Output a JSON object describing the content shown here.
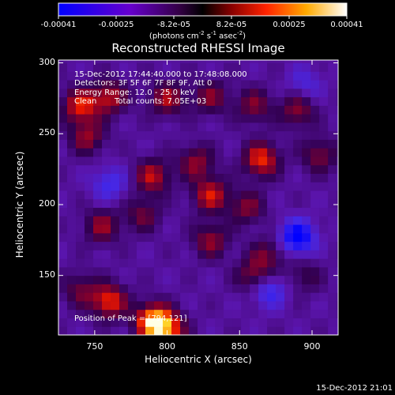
{
  "colorbar": {
    "ticks": [
      "-0.00041",
      "-0.00025",
      "-8.2e-05",
      "8.2e-05",
      "0.00025",
      "0.00041"
    ],
    "unit_parts": [
      "(photons cm",
      "-2",
      " s",
      "-1",
      " asec",
      "-2",
      ")"
    ]
  },
  "annotations": {
    "time_range": "15-Dec-2012 17:44:40.000 to 17:48:08.000",
    "detectors": "Detectors: 3F 5F 6F 7F 8F 9F, Att 0",
    "energy_range": "Energy Range: 12.0 - 25.0 keV",
    "clean_label": "Clean",
    "total_counts": "Total counts: 7.05E+03",
    "peak": "Position of Peak = [794,121]"
  },
  "footer_timestamp": "15-Dec-2012 21:01",
  "chart_data": {
    "type": "heatmap",
    "title": "Reconstructed RHESSI Image",
    "xlabel": "Heliocentric X (arcsec)",
    "ylabel": "Heliocentric Y (arcsec)",
    "xlim": [
      725,
      918
    ],
    "ylim": [
      108,
      302
    ],
    "xticks": [
      750,
      800,
      850,
      900
    ],
    "yticks": [
      150,
      200,
      250,
      300
    ],
    "colorscale_range": [
      -0.00041,
      0.00041
    ],
    "colors": {
      "negative": "#0000ff",
      "zero": "#000000",
      "positive_mid": "#ff3300",
      "positive_max": "#ffffff"
    },
    "peak_position": [
      794,
      121
    ],
    "bright_regions": [
      {
        "x": 740,
        "y": 270,
        "level": 0.7
      },
      {
        "x": 760,
        "y": 276,
        "level": 0.6
      },
      {
        "x": 800,
        "y": 275,
        "level": 0.55
      },
      {
        "x": 830,
        "y": 276,
        "level": 0.45
      },
      {
        "x": 860,
        "y": 270,
        "level": 0.45
      },
      {
        "x": 890,
        "y": 267,
        "level": 0.5
      },
      {
        "x": 745,
        "y": 248,
        "level": 0.5
      },
      {
        "x": 790,
        "y": 220,
        "level": 0.6
      },
      {
        "x": 820,
        "y": 230,
        "level": 0.5
      },
      {
        "x": 865,
        "y": 232,
        "level": 0.75
      },
      {
        "x": 905,
        "y": 235,
        "level": 0.45
      },
      {
        "x": 830,
        "y": 207,
        "level": 0.65
      },
      {
        "x": 855,
        "y": 198,
        "level": 0.45
      },
      {
        "x": 755,
        "y": 185,
        "level": 0.5
      },
      {
        "x": 783,
        "y": 193,
        "level": 0.4
      },
      {
        "x": 830,
        "y": 175,
        "level": 0.5
      },
      {
        "x": 860,
        "y": 150,
        "level": 0.5
      },
      {
        "x": 870,
        "y": 165,
        "level": 0.4
      },
      {
        "x": 760,
        "y": 132,
        "level": 0.75
      },
      {
        "x": 790,
        "y": 118,
        "level": 1.0
      },
      {
        "x": 800,
        "y": 112,
        "level": 0.8
      },
      {
        "x": 740,
        "y": 140,
        "level": 0.4
      },
      {
        "x": 895,
        "y": 150,
        "level": 0.3
      }
    ],
    "dark_regions": [
      {
        "x": 890,
        "y": 177,
        "level": -0.8
      },
      {
        "x": 870,
        "y": 140,
        "level": -0.5
      },
      {
        "x": 760,
        "y": 215,
        "level": -0.4
      },
      {
        "x": 895,
        "y": 285,
        "level": -0.3
      }
    ]
  }
}
